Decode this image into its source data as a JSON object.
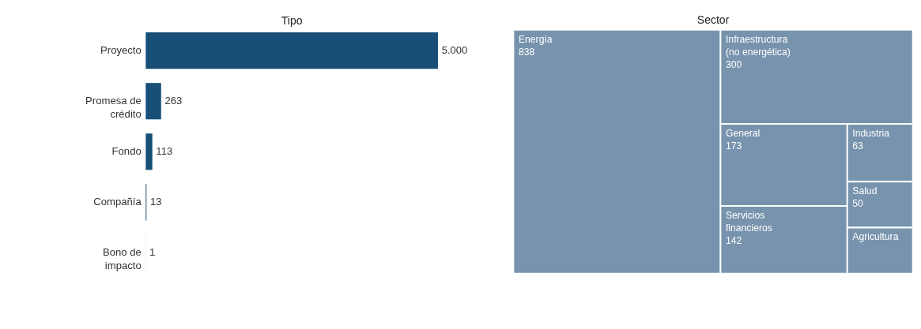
{
  "chart_data": [
    {
      "type": "bar",
      "orientation": "horizontal",
      "title": "Tipo",
      "categories": [
        "Proyecto",
        "Promesa de crédito",
        "Fondo",
        "Compañía",
        "Bono de impacto"
      ],
      "values": [
        5000,
        263,
        113,
        13,
        1
      ],
      "value_labels": [
        "5.000",
        "263",
        "113",
        "13",
        "1"
      ],
      "color": "#174f78"
    },
    {
      "type": "other",
      "title": "Sector",
      "categories": [
        "Energía",
        "Infraestructura (no energética)",
        "General",
        "Servicios financieros",
        "Industria",
        "Salud",
        "Agricultura"
      ],
      "values": [
        838,
        300,
        173,
        142,
        63,
        50,
        null
      ],
      "data_labels": true,
      "color": "#7793ad"
    }
  ]
}
